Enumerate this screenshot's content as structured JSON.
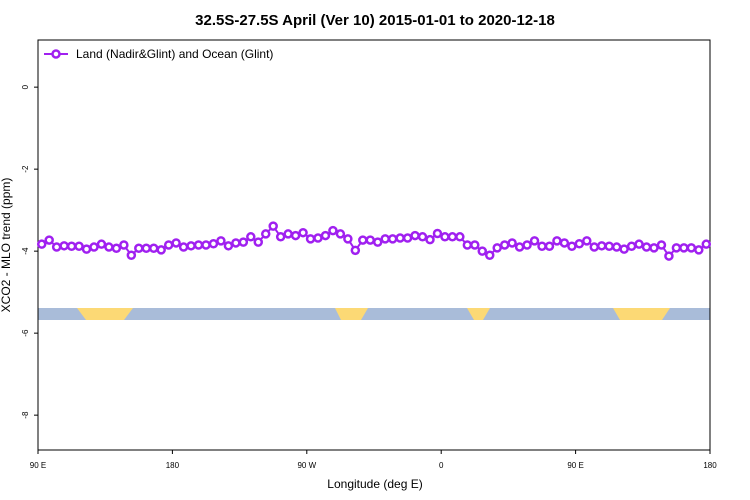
{
  "chart_data": {
    "type": "line",
    "title": "32.5S-27.5S April (Ver 10)   2015-01-01 to 2020-12-18",
    "x_label": "Longitude (deg E)",
    "y_label": "XCO2 - MLO trend (ppm)",
    "xlim": [
      90,
      540
    ],
    "ylim": [
      1.15,
      -8.85
    ],
    "xticks": [
      {
        "value": 90,
        "label": "90 E"
      },
      {
        "value": 180,
        "label": "180"
      },
      {
        "value": 270,
        "label": "90 W"
      },
      {
        "value": 360,
        "label": "0"
      },
      {
        "value": 450,
        "label": "90 E"
      },
      {
        "value": 540,
        "label": "180"
      }
    ],
    "yticks": [
      0,
      -2,
      -4,
      -6,
      -8
    ],
    "legend": "top-left",
    "x": [
      92.5,
      97.5,
      102.5,
      107.5,
      112.5,
      117.5,
      122.5,
      127.5,
      132.5,
      137.5,
      142.5,
      147.5,
      152.5,
      157.5,
      162.5,
      167.5,
      172.5,
      177.5,
      182.5,
      187.5,
      192.5,
      197.5,
      202.5,
      207.5,
      212.5,
      217.5,
      222.5,
      227.5,
      232.5,
      237.5,
      242.5,
      247.5,
      252.5,
      257.5,
      262.5,
      267.5,
      272.5,
      277.5,
      282.5,
      287.5,
      292.5,
      297.5,
      302.5,
      307.5,
      312.5,
      317.5,
      322.5,
      327.5,
      332.5,
      337.5,
      342.5,
      347.5,
      352.5,
      357.5,
      362.5,
      367.5,
      372.5,
      377.5,
      382.5,
      387.5,
      392.5,
      397.5,
      402.5,
      407.5,
      412.5,
      417.5,
      422.5,
      427.5,
      432.5,
      437.5,
      442.5,
      447.5,
      452.5,
      457.5,
      462.5,
      467.5,
      472.5,
      477.5,
      482.5,
      487.5,
      492.5,
      497.5,
      502.5,
      507.5,
      512.5,
      517.5,
      522.5,
      527.5,
      532.5,
      537.5
    ],
    "series": [
      {
        "name": "Land (Nadir&Glint) and Ocean (Glint)",
        "color": "#a020f0",
        "values": [
          -3.83,
          -3.73,
          -3.9,
          -3.87,
          -3.88,
          -3.88,
          -3.95,
          -3.9,
          -3.83,
          -3.9,
          -3.93,
          -3.85,
          -4.1,
          -3.93,
          -3.93,
          -3.93,
          -3.97,
          -3.85,
          -3.8,
          -3.9,
          -3.87,
          -3.85,
          -3.85,
          -3.82,
          -3.75,
          -3.87,
          -3.8,
          -3.78,
          -3.65,
          -3.78,
          -3.58,
          -3.39,
          -3.65,
          -3.58,
          -3.62,
          -3.55,
          -3.7,
          -3.68,
          -3.62,
          -3.5,
          -3.58,
          -3.7,
          -3.98,
          -3.73,
          -3.73,
          -3.78,
          -3.7,
          -3.7,
          -3.68,
          -3.68,
          -3.62,
          -3.65,
          -3.72,
          -3.57,
          -3.65,
          -3.65,
          -3.65,
          -3.85,
          -3.85,
          -4.0,
          -4.1,
          -3.92,
          -3.85,
          -3.8,
          -3.9,
          -3.85,
          -3.75,
          -3.88,
          -3.88,
          -3.75,
          -3.8,
          -3.88,
          -3.82,
          -3.75,
          -3.9,
          -3.87,
          -3.88,
          -3.9,
          -3.95,
          -3.88,
          -3.83,
          -3.9,
          -3.92,
          -3.85,
          -4.12,
          -3.92,
          -3.92,
          -3.92,
          -3.97,
          -3.83
        ]
      }
    ]
  }
}
